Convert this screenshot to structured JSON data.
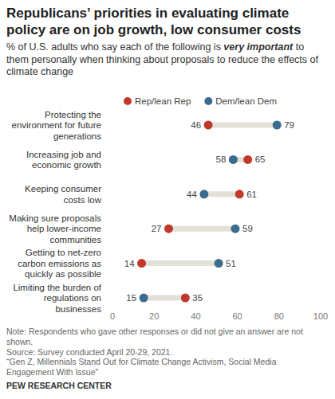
{
  "chart_data": {
    "type": "dot",
    "title": "Republicans’ priorities in evaluating climate policy are on job growth, low consumer costs",
    "subtitle": [
      "% of U.S. adults who say each of the following is ",
      "very important",
      " to them personally when thinking about proposals to reduce the effects of climate change"
    ],
    "categories": [
      "Protecting the environment for future generations",
      "Increasing job and economic growth",
      "Keeping consumer costs low",
      "Making sure proposals help lower-income communities",
      "Getting to net-zero carbon emissions as quickly as possible",
      "Limiting the burden of regulations on businesses"
    ],
    "series": [
      {
        "name": "Rep/lean Rep",
        "color": "#c0392b",
        "values": [
          46,
          65,
          61,
          27,
          14,
          35
        ]
      },
      {
        "name": "Dem/lean Dem",
        "color": "#3b6b8f",
        "values": [
          79,
          58,
          44,
          59,
          51,
          15
        ]
      }
    ],
    "xlim": [
      0,
      100
    ],
    "xticks": [
      0,
      20,
      40,
      60,
      80,
      100
    ],
    "orientation": "horizontal",
    "data_labels": true,
    "legend": "top",
    "grid": false,
    "notes": [
      "Note: Respondents who gave other responses or did not give an answer are not shown.",
      "Source: Survey conducted April 20-29, 2021.",
      "“Gen Z, Millennials Stand Out for Climate Change Activism, Social Media Engagement With Issue”"
    ],
    "credit": "PEW RESEARCH CENTER"
  }
}
